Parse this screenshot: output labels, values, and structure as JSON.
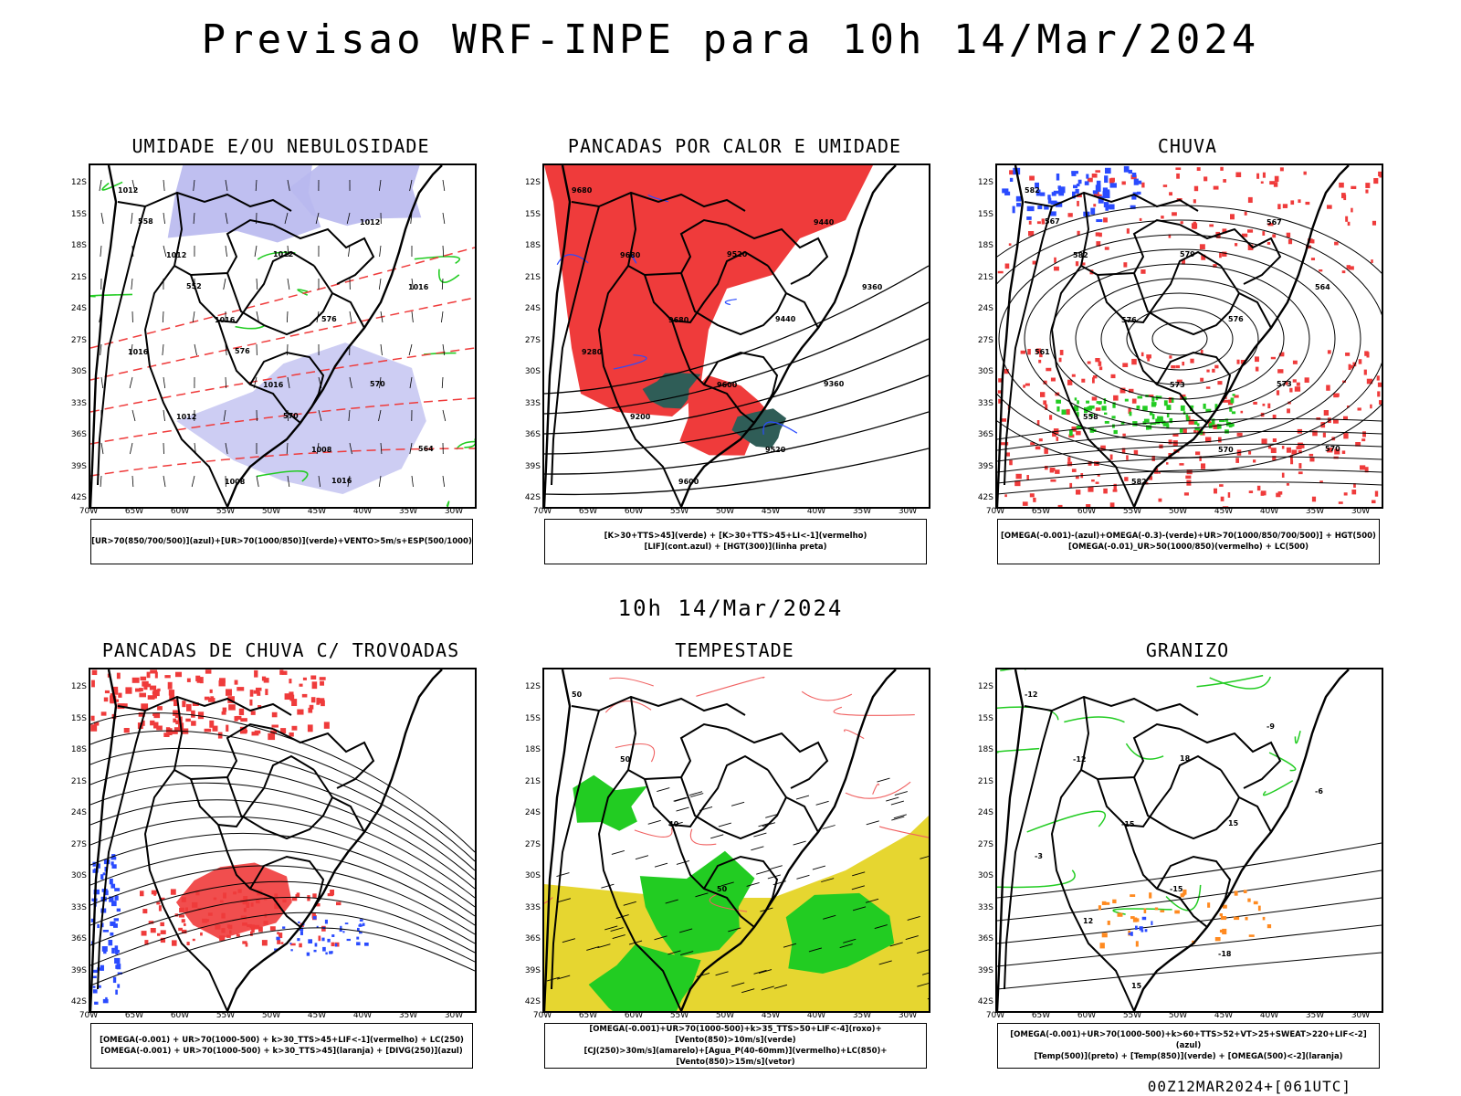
{
  "page": {
    "title": "Previsao WRF-INPE  para 10h 14/Mar/2024",
    "subtitle": "10h 14/Mar/2024",
    "footer": "00Z12MAR2024+[061UTC]"
  },
  "axes": {
    "lat_labels": [
      "12S",
      "15S",
      "18S",
      "21S",
      "24S",
      "27S",
      "30S",
      "33S",
      "36S",
      "39S",
      "42S"
    ],
    "lon_labels": [
      "70W",
      "65W",
      "60W",
      "55W",
      "50W",
      "45W",
      "40W",
      "35W",
      "30W"
    ]
  },
  "panels": [
    {
      "title": "UMIDADE E/OU NEBULOSIDADE",
      "legend": [
        "[UR>70(850/700/500)](azul)+[UR>70(1000/850)](verde)+VENTO>5m/s+ESP(500/1000)"
      ],
      "contour_labels": [
        "1012",
        "1012",
        "1016",
        "1016",
        "1008",
        "1012",
        "1016",
        "1016",
        "1012",
        "1008",
        "1012",
        "576",
        "570",
        "564",
        "558",
        "552",
        "576",
        "570",
        "1016"
      ]
    },
    {
      "title": "PANCADAS POR CALOR E UMIDADE",
      "legend": [
        "[K>30+TTS>45](verde) + [K>30+TTS>45+LI<-1](vermelho)",
        "[LIF](cont.azul) + [HGT(300)](linha preta)"
      ],
      "contour_labels": [
        "9680",
        "9680",
        "9680",
        "9600",
        "9520",
        "9440",
        "9360",
        "9280",
        "9200",
        "9600",
        "9520",
        "9440",
        "9360"
      ]
    },
    {
      "title": "CHUVA",
      "legend": [
        "[OMEGA(-0.001)-(azul)+OMEGA(-0.3)-(verde)+UR>70(1000/850/700/500)] + HGT(500)",
        "[OMEGA(-0.01)_UR>50(1000/850)(vermelho) + LC(500)"
      ],
      "contour_labels": [
        "582",
        "582",
        "576",
        "573",
        "570",
        "567",
        "564",
        "561",
        "558",
        "582",
        "579",
        "576",
        "573",
        "570",
        "567"
      ]
    },
    {
      "title": "PANCADAS DE CHUVA C/ TROVOADAS",
      "legend": [
        "[OMEGA(-0.001) + UR>70(1000-500) + k>30_TTS>45+LIF<-1](vermelho) + LC(250)",
        "[OMEGA(-0.001) + UR>70(1000-500) + k>30_TTS>45](laranja) + [DIVG(250)](azul)"
      ],
      "contour_labels": []
    },
    {
      "title": "TEMPESTADE",
      "legend": [
        "[OMEGA(-0.001)+UR>70(1000-500)+k>35_TTS>50+LIF<-4](roxo)+[Vento(850)>10m/s](verde)",
        "[CJ(250)>30m/s](amarelo)+[Agua_P(40-60mm)](vermelho)+LC(850)+[Vento(850)>15m/s](vetor)"
      ],
      "contour_labels": [
        "50",
        "50",
        "40",
        "50"
      ]
    },
    {
      "title": "GRANIZO",
      "legend": [
        "[OMEGA(-0.001)+UR>70(1000-500)+k>60+TTS>52+VT>25+SWEAT>220+LIF<-2](azul)",
        "[Temp(500)](preto) + [Temp(850)](verde) + [OMEGA(500)<-2](laranja)"
      ],
      "contour_labels": [
        "-12",
        "-12",
        "-15",
        "-15",
        "-18",
        "-9",
        "-6",
        "-3",
        "12",
        "15",
        "18",
        "15"
      ]
    }
  ],
  "colors": {
    "black": "#000000",
    "red": "#ef3b3b",
    "green": "#22cc22",
    "blue": "#2a4bff",
    "lavender": "#b8b8ee",
    "dark_teal": "#2f5d57",
    "yellow": "#e6d630",
    "orange": "#ff8a20",
    "purple": "#9932cc",
    "light_red": "#f06060"
  }
}
